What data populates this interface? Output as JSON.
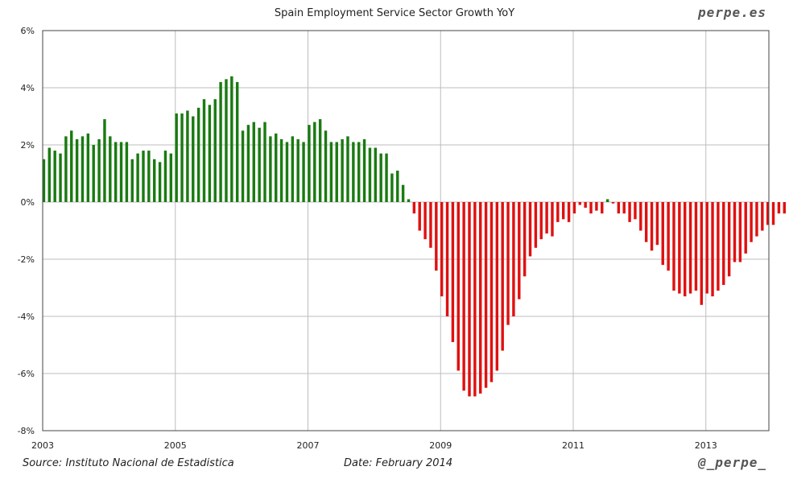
{
  "page": {
    "brand": "perpe.es",
    "handle": "@_perpe_",
    "source": "Source: Instituto Nacional de Estadistica",
    "date": "Date: February 2014"
  },
  "colors": {
    "positive": "#1a7a12",
    "negative": "#e01010",
    "grid": "#bdbdbd",
    "frame": "#444444"
  },
  "chart_data": {
    "type": "bar",
    "title": "Spain Employment Service Sector Growth YoY",
    "xlabel": "",
    "ylabel": "",
    "ylim": [
      -8,
      6
    ],
    "xlim": [
      2003.0,
      2013.95
    ],
    "yticks": [
      6,
      4,
      2,
      0,
      -2,
      -4,
      -6,
      -8
    ],
    "ytick_labels": [
      "6%",
      "4%",
      "2%",
      "0%",
      "-2%",
      "-4%",
      "-6%",
      "-8%"
    ],
    "xticks": [
      2003,
      2005,
      2007,
      2009,
      2011,
      2013
    ],
    "xtick_labels": [
      "2003",
      "2005",
      "2007",
      "2009",
      "2011",
      "2013"
    ],
    "start": "2003-01",
    "frequency": "monthly",
    "values": [
      1.5,
      1.9,
      1.8,
      1.7,
      2.3,
      2.5,
      2.2,
      2.3,
      2.4,
      2.0,
      2.2,
      2.9,
      2.3,
      2.1,
      2.1,
      2.1,
      1.5,
      1.7,
      1.8,
      1.8,
      1.5,
      1.4,
      1.8,
      1.7,
      3.1,
      3.1,
      3.2,
      3.0,
      3.3,
      3.6,
      3.4,
      3.6,
      4.2,
      4.3,
      4.4,
      4.2,
      2.5,
      2.7,
      2.8,
      2.6,
      2.8,
      2.3,
      2.4,
      2.2,
      2.1,
      2.3,
      2.2,
      2.1,
      2.7,
      2.8,
      2.9,
      2.5,
      2.1,
      2.1,
      2.2,
      2.3,
      2.1,
      2.1,
      2.2,
      1.9,
      1.9,
      1.7,
      1.7,
      1.0,
      1.1,
      0.6,
      0.1,
      -0.4,
      -1.0,
      -1.3,
      -1.6,
      -2.4,
      -3.3,
      -4.0,
      -4.9,
      -5.9,
      -6.6,
      -6.8,
      -6.8,
      -6.7,
      -6.5,
      -6.3,
      -5.9,
      -5.2,
      -4.3,
      -4.0,
      -3.4,
      -2.6,
      -1.9,
      -1.6,
      -1.3,
      -1.1,
      -1.2,
      -0.7,
      -0.6,
      -0.7,
      -0.4,
      -0.1,
      -0.2,
      -0.4,
      -0.3,
      -0.4,
      0.1,
      -0.05,
      -0.4,
      -0.4,
      -0.7,
      -0.6,
      -1.0,
      -1.4,
      -1.7,
      -1.5,
      -2.2,
      -2.4,
      -3.1,
      -3.2,
      -3.3,
      -3.2,
      -3.1,
      -3.6,
      -3.2,
      -3.3,
      -3.1,
      -2.9,
      -2.6,
      -2.1,
      -2.1,
      -1.8,
      -1.4,
      -1.2,
      -1.0,
      -0.8,
      -0.8,
      -0.4,
      -0.4
    ]
  }
}
